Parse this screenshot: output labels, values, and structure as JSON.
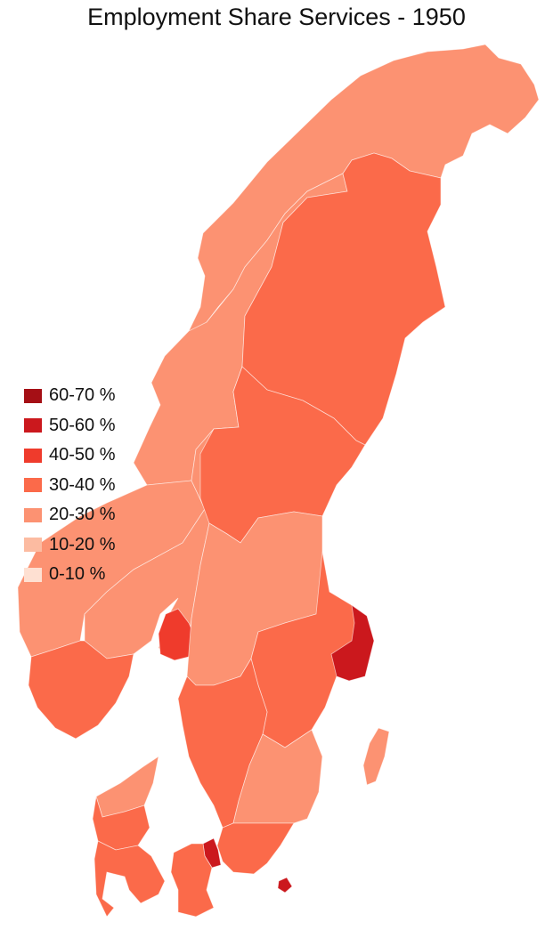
{
  "title": "Employment Share Services - 1950",
  "legend": [
    {
      "label": "60-70 %",
      "color": "#a50f15"
    },
    {
      "label": "50-60 %",
      "color": "#cb181d"
    },
    {
      "label": "40-50 %",
      "color": "#ef3b2c"
    },
    {
      "label": "30-40 %",
      "color": "#fb6a4a"
    },
    {
      "label": "20-30 %",
      "color": "#fc9272"
    },
    {
      "label": "10-20 %",
      "color": "#fcbba1"
    },
    {
      "label": "0-10 %",
      "color": "#fee0d2"
    }
  ],
  "regions": [
    {
      "name": "Northern Norway",
      "class": "20-30 %"
    },
    {
      "name": "Central Norway",
      "class": "20-30 %"
    },
    {
      "name": "Western Norway",
      "class": "20-30 %"
    },
    {
      "name": "Eastern Norway",
      "class": "20-30 %"
    },
    {
      "name": "Oslo",
      "class": "40-50 %"
    },
    {
      "name": "Southern Norway",
      "class": "30-40 %"
    },
    {
      "name": "Upper Norrland",
      "class": "30-40 %"
    },
    {
      "name": "Middle Norrland",
      "class": "30-40 %"
    },
    {
      "name": "North Middle Sweden",
      "class": "20-30 %"
    },
    {
      "name": "East Middle Sweden",
      "class": "30-40 %"
    },
    {
      "name": "Stockholm",
      "class": "50-60 %"
    },
    {
      "name": "West Sweden",
      "class": "30-40 %"
    },
    {
      "name": "Småland and islands",
      "class": "20-30 %"
    },
    {
      "name": "South Sweden",
      "class": "30-40 %"
    },
    {
      "name": "Gotland",
      "class": "20-30 %"
    },
    {
      "name": "Bornholm",
      "class": "50-60 %"
    },
    {
      "name": "Copenhagen",
      "class": "50-60 %"
    },
    {
      "name": "Zealand",
      "class": "30-40 %"
    },
    {
      "name": "North Jutland",
      "class": "20-30 %"
    },
    {
      "name": "Central Jutland",
      "class": "30-40 %"
    },
    {
      "name": "South Denmark",
      "class": "30-40 %"
    }
  ]
}
